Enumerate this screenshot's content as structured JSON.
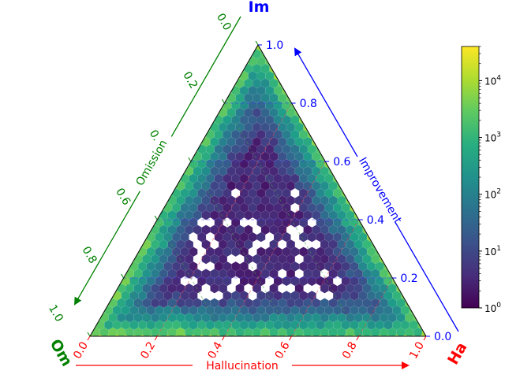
{
  "chart_data": {
    "type": "ternary-hexbin",
    "corners": {
      "top": "Im",
      "right": "Ha",
      "left": "Om"
    },
    "axes": {
      "improvement": {
        "label": "Improvement",
        "color": "#0000ff",
        "ticks": [
          "0.0",
          "0.2",
          "0.4",
          "0.6",
          "0.8",
          "1.0"
        ]
      },
      "hallucination": {
        "label": "Hallucination",
        "color": "#ff0000",
        "ticks": [
          "0.0",
          "0.2",
          "0.4",
          "0.6",
          "0.8",
          "1.0"
        ]
      },
      "omission": {
        "label": "Omission",
        "color": "#008000",
        "ticks": [
          "0.0",
          "0.2",
          "0.4",
          "0.6",
          "0.8",
          "1.0"
        ]
      }
    },
    "colorbar": {
      "scale": "log",
      "colormap": "viridis",
      "range": [
        1,
        40000
      ],
      "tick_labels": [
        {
          "base": "10",
          "exp": "0"
        },
        {
          "base": "10",
          "exp": "1"
        },
        {
          "base": "10",
          "exp": "2"
        },
        {
          "base": "10",
          "exp": "3"
        },
        {
          "base": "10",
          "exp": "4"
        }
      ]
    },
    "density_note_counts": {
      "edges": 3000,
      "interior_low": 3
    },
    "grid": true
  }
}
